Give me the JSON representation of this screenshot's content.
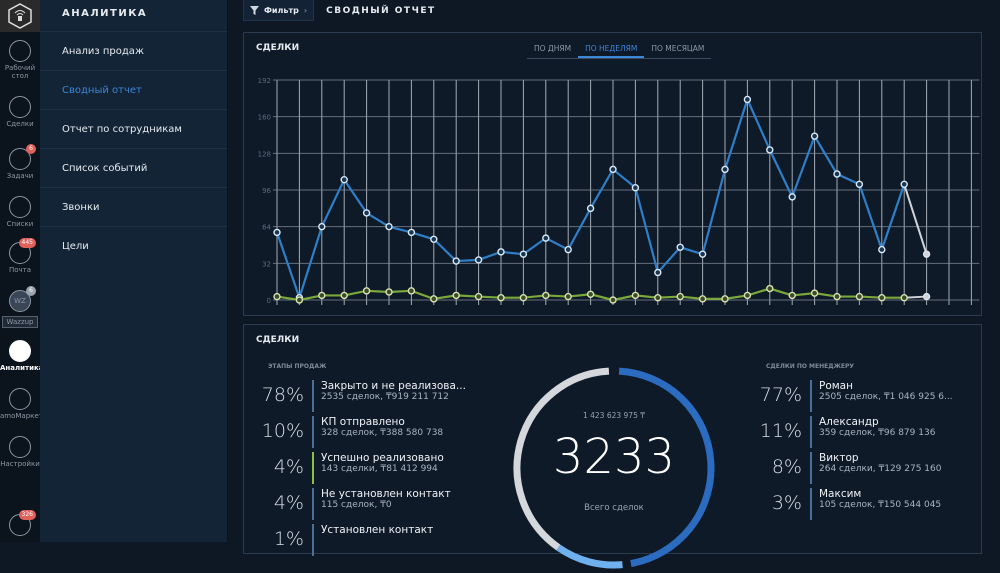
{
  "rail": [
    {
      "label": "Рабочий стол",
      "icon": "dashboard-icon"
    },
    {
      "label": "Сделки",
      "icon": "dollar-icon"
    },
    {
      "label": "Задачи",
      "icon": "check-icon",
      "badge": "6"
    },
    {
      "label": "Списки",
      "icon": "list-icon"
    },
    {
      "label": "Почта",
      "icon": "mail-icon",
      "badge": "445"
    },
    {
      "label": "Wazzup",
      "icon": "wazzup-icon",
      "badge": "6",
      "short": "WZ"
    },
    {
      "label": "Аналитика",
      "icon": "analytics-icon"
    },
    {
      "label": "amoМаркет",
      "icon": "market-icon"
    },
    {
      "label": "Настройки",
      "icon": "wrench-icon"
    },
    {
      "label": "",
      "icon": "chat-icon",
      "badge": "326"
    }
  ],
  "sidebar": {
    "title": "АНАЛИТИКА",
    "items": [
      {
        "label": "Анализ продаж"
      },
      {
        "label": "Сводный отчет"
      },
      {
        "label": "Отчет по сотрудникам"
      },
      {
        "label": "Список событий"
      },
      {
        "label": "Звонки"
      },
      {
        "label": "Цели"
      }
    ]
  },
  "header": {
    "filter": "Фильтр",
    "title": "СВОДНЫЙ ОТЧЕТ"
  },
  "chart_panel": {
    "title": "СДЕЛКИ",
    "tabs": [
      "ПО ДНЯМ",
      "ПО НЕДЕЛЯМ",
      "ПО МЕСЯЦАМ"
    ],
    "active_tab": 1
  },
  "chart_data": {
    "type": "line",
    "yticks": [
      0,
      32,
      64,
      96,
      128,
      160,
      192
    ],
    "ylim": [
      0,
      192
    ],
    "grid": true,
    "colors": {
      "total": "#2f7fc8",
      "won": "#7aa83a",
      "incomplete": "#cfd4da"
    },
    "series": [
      {
        "values": [
          59,
          2,
          64,
          105,
          76,
          64,
          59,
          53,
          34,
          35,
          42,
          40,
          54,
          44,
          80,
          114,
          98,
          24,
          46,
          40,
          114,
          175,
          131,
          90,
          143,
          110,
          101,
          44,
          101,
          40
        ]
      },
      {
        "values": [
          3,
          0,
          4,
          4,
          8,
          7,
          8,
          1,
          4,
          3,
          2,
          2,
          4,
          3,
          5,
          0,
          4,
          2,
          3,
          1,
          1,
          4,
          10,
          4,
          6,
          3,
          3,
          2,
          2,
          3
        ]
      }
    ],
    "last_point_incomplete": true
  },
  "summary": {
    "title": "СДЕЛКИ",
    "stages_label": "ЭТАПЫ ПРОДАЖ",
    "stages": [
      {
        "pct": "78%",
        "name": "Закрыто и не реализова...",
        "detail": "2535 сделок, ₸919 211 712"
      },
      {
        "pct": "10%",
        "name": "КП отправлено",
        "detail": "328 сделок, ₸388 580 738"
      },
      {
        "pct": "4%",
        "name": "Успешно реализовано",
        "detail": "143 сделки, ₸81 412 994",
        "green": true
      },
      {
        "pct": "4%",
        "name": "Не установлен контакт",
        "detail": "115 сделок, ₸0"
      },
      {
        "pct": "1%",
        "name": "Установлен контакт",
        "detail": ""
      }
    ],
    "total_sum": "1 423 623 975 ₸",
    "total_count": "3233",
    "total_label": "Всего сделок",
    "managers_label": "СДЕЛКИ ПО МЕНЕДЖЕРУ",
    "managers": [
      {
        "pct": "77%",
        "name": "Роман",
        "detail": "2505 сделок, ₸1 046 925 6..."
      },
      {
        "pct": "11%",
        "name": "Александр",
        "detail": "359 сделок, ₸96 879 136"
      },
      {
        "pct": "8%",
        "name": "Виктор",
        "detail": "264 сделки, ₸129 275 160"
      },
      {
        "pct": "3%",
        "name": "Максим",
        "detail": "105 сделок, ₸150 544 045"
      }
    ]
  }
}
